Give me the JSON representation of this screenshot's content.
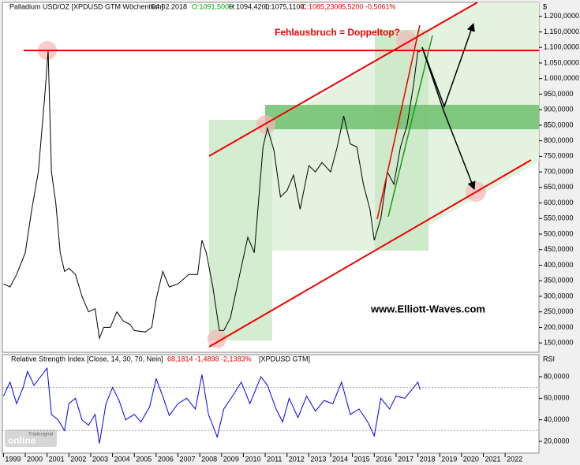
{
  "chart_data": [
    {
      "type": "line",
      "title": "Palladium USD/OZ [XPDUSD GTM  Wöchentlich]",
      "date": "04.02.2018",
      "quote_open": "O:1091,5000",
      "quote_high": "H:1094,4200",
      "quote_low": "L:1075,1100",
      "quote_close": "C:1085,2300",
      "quote_change": "-5,5200 -0,5061%",
      "axis_unit": "$",
      "annotations": [
        "Fehlausbruch = Doppeltop?",
        "www.Elliott-Waves.com"
      ],
      "logo": [
        "Tradesignal",
        "online"
      ],
      "x": [
        1999.0,
        1999.3,
        1999.6,
        2000.0,
        2000.3,
        2000.6,
        2000.9,
        2001.05,
        2001.2,
        2001.4,
        2001.6,
        2001.8,
        2002.0,
        2002.3,
        2002.6,
        2002.9,
        2003.2,
        2003.4,
        2003.6,
        2003.9,
        2004.2,
        2004.5,
        2004.8,
        2005.0,
        2005.5,
        2005.8,
        2006.0,
        2006.3,
        2006.6,
        2007.0,
        2007.5,
        2007.9,
        2008.1,
        2008.3,
        2008.6,
        2008.9,
        2009.1,
        2009.4,
        2009.8,
        2010.2,
        2010.5,
        2010.9,
        2011.1,
        2011.4,
        2011.7,
        2012.0,
        2012.3,
        2012.6,
        2013.0,
        2013.3,
        2013.6,
        2014.0,
        2014.3,
        2014.6,
        2014.9,
        2015.2,
        2015.5,
        2015.8,
        2016.0,
        2016.3,
        2016.6,
        2016.9,
        2017.2,
        2017.5,
        2017.8,
        2018.0,
        2018.1
      ],
      "series": [
        {
          "name": "XPDUSD",
          "color": "#000000",
          "values": [
            340,
            330,
            370,
            440,
            580,
            700,
            950,
            1090,
            700,
            600,
            440,
            380,
            390,
            370,
            300,
            250,
            260,
            165,
            200,
            200,
            250,
            220,
            210,
            190,
            185,
            200,
            290,
            380,
            330,
            340,
            370,
            370,
            480,
            440,
            330,
            190,
            190,
            230,
            360,
            490,
            440,
            780,
            840,
            770,
            620,
            640,
            690,
            580,
            720,
            700,
            730,
            700,
            780,
            880,
            790,
            780,
            660,
            580,
            480,
            550,
            700,
            660,
            780,
            850,
            980,
            1090,
            1085
          ]
        }
      ],
      "xlim": [
        1998.95,
        2023.55
      ],
      "xticks": [
        1999,
        2000,
        2001,
        2002,
        2003,
        2004,
        2005,
        2006,
        2007,
        2008,
        2009,
        2010,
        2011,
        2012,
        2013,
        2014,
        2015,
        2016,
        2017,
        2018,
        2019,
        2020,
        2021,
        2022
      ],
      "ylim": [
        120,
        1245
      ],
      "yticks": [
        {
          "value": 150,
          "label": "150,0000"
        },
        {
          "value": 200,
          "label": "200,0000"
        },
        {
          "value": 250,
          "label": "250,0000"
        },
        {
          "value": 300,
          "label": "300,0000"
        },
        {
          "value": 350,
          "label": "350,0000"
        },
        {
          "value": 400,
          "label": "400,0000"
        },
        {
          "value": 450,
          "label": "450,0000"
        },
        {
          "value": 500,
          "label": "500,0000"
        },
        {
          "value": 550,
          "label": "550,0000"
        },
        {
          "value": 600,
          "label": "600,0000"
        },
        {
          "value": 650,
          "label": "650,0000"
        },
        {
          "value": 700,
          "label": "700,0000"
        },
        {
          "value": 750,
          "label": "750,0000"
        },
        {
          "value": 800,
          "label": "800,0000"
        },
        {
          "value": 850,
          "label": "850,0000"
        },
        {
          "value": 900,
          "label": "900,0000"
        },
        {
          "value": 950,
          "label": "950,0000"
        },
        {
          "value": 1000,
          "label": "1.000,0000"
        },
        {
          "value": 1050,
          "label": "1.050,0000"
        },
        {
          "value": 1100,
          "label": "1.100,0000"
        },
        {
          "value": 1150,
          "label": "1.150,0000"
        },
        {
          "value": 1200,
          "label": "1.200,0000"
        }
      ]
    },
    {
      "type": "line",
      "title": "Relative Strength Index [Close, 14, 30, 70, Nein]",
      "readout": "68,1814 -1,4898 -2,1383%",
      "source": "[XPDUSD GTM]",
      "axis_unit": "RSI",
      "levels": [
        30,
        70
      ],
      "x": [
        1999.0,
        1999.3,
        1999.6,
        1999.9,
        2000.1,
        2000.4,
        2000.7,
        2001.0,
        2001.2,
        2001.5,
        2001.8,
        2002.0,
        2002.3,
        2002.6,
        2002.9,
        2003.2,
        2003.4,
        2003.7,
        2004.0,
        2004.3,
        2004.6,
        2005.0,
        2005.3,
        2005.7,
        2006.0,
        2006.3,
        2006.6,
        2007.0,
        2007.4,
        2007.8,
        2008.1,
        2008.4,
        2008.8,
        2009.1,
        2009.5,
        2009.9,
        2010.3,
        2010.8,
        2011.1,
        2011.5,
        2011.8,
        2012.1,
        2012.5,
        2012.9,
        2013.3,
        2013.7,
        2014.1,
        2014.5,
        2014.9,
        2015.3,
        2015.7,
        2016.0,
        2016.3,
        2016.7,
        2017.0,
        2017.4,
        2017.8,
        2018.0,
        2018.1
      ],
      "series": [
        {
          "name": "RSI",
          "color": "#0000ee",
          "values": [
            62,
            75,
            55,
            70,
            85,
            72,
            80,
            88,
            45,
            40,
            30,
            55,
            60,
            40,
            35,
            45,
            18,
            55,
            70,
            58,
            40,
            45,
            38,
            52,
            78,
            62,
            44,
            55,
            60,
            50,
            82,
            45,
            24,
            50,
            62,
            75,
            55,
            80,
            72,
            50,
            38,
            60,
            42,
            62,
            48,
            58,
            55,
            75,
            45,
            50,
            38,
            25,
            60,
            50,
            62,
            60,
            70,
            75,
            68
          ]
        }
      ],
      "xlim": [
        1998.95,
        2023.55
      ],
      "ylim": [
        9,
        100.5
      ],
      "yticks": [
        {
          "value": 20,
          "label": "20,0000"
        },
        {
          "value": 40,
          "label": "40,0000"
        },
        {
          "value": 60,
          "label": "60,0000"
        },
        {
          "value": 80,
          "label": "80,0000"
        }
      ]
    }
  ]
}
